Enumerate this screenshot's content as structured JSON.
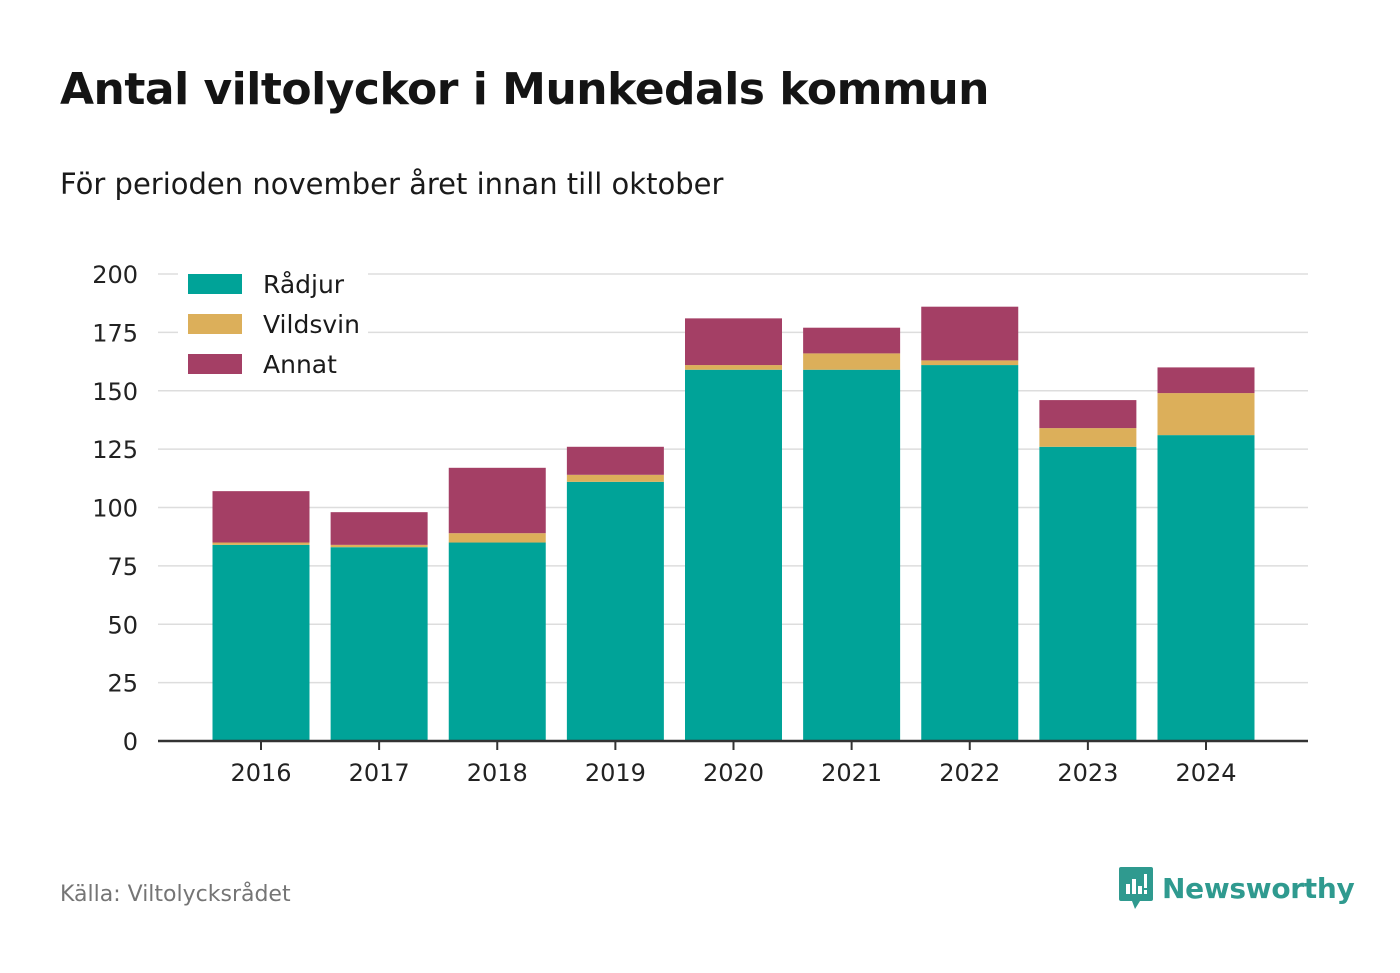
{
  "title": "Antal viltolyckor i Munkedals kommun",
  "subtitle": "För perioden november året innan till oktober",
  "source": "Källa: Viltolycksrådet",
  "brand": "Newsworthy",
  "colors": {
    "radjur": "#00a398",
    "vildsvin": "#dcaf5a",
    "annat": "#a43f65",
    "grid": "#dddddd",
    "axis": "#333333",
    "brand": "#2f9a8f"
  },
  "icons": {
    "brand_logo": "bar-chart-speech-bubble-icon"
  },
  "chart_data": {
    "type": "bar",
    "stacked": true,
    "categories": [
      "2016",
      "2017",
      "2018",
      "2019",
      "2020",
      "2021",
      "2022",
      "2023",
      "2024"
    ],
    "series": [
      {
        "name": "Rådjur",
        "color": "#00a398",
        "values": [
          84,
          83,
          85,
          111,
          159,
          159,
          161,
          126,
          131
        ]
      },
      {
        "name": "Vildsvin",
        "color": "#dcaf5a",
        "values": [
          1,
          1,
          4,
          3,
          2,
          7,
          2,
          8,
          18
        ]
      },
      {
        "name": "Annat",
        "color": "#a43f65",
        "values": [
          22,
          14,
          28,
          12,
          20,
          11,
          23,
          12,
          11
        ]
      }
    ],
    "ylim": [
      0,
      200
    ],
    "yticks": [
      0,
      25,
      50,
      75,
      100,
      125,
      150,
      175,
      200
    ],
    "grid": true,
    "legend": "top-left"
  }
}
